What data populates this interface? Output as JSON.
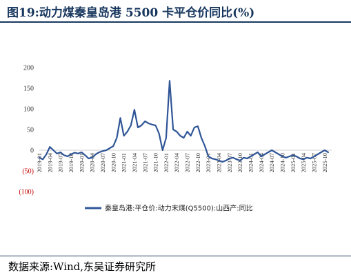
{
  "header": {
    "title": "图19:动力煤秦皇岛港 5500 卡平仓价同比(%)"
  },
  "footer": {
    "source": "数据来源:Wind,东吴证券研究所"
  },
  "colors": {
    "line": "#2f5597",
    "rule": "#17375e",
    "negative_tick": "#c00000"
  },
  "chart_data": {
    "type": "line",
    "title": "",
    "xlabel": "",
    "ylabel": "",
    "ylim": [
      -100,
      200
    ],
    "y_ticks": [
      "200",
      "150",
      "100",
      "50",
      "0",
      "(50)",
      "(100)"
    ],
    "y_tick_values": [
      200,
      150,
      100,
      50,
      0,
      -50,
      -100
    ],
    "x_ticks": [
      "2019-01",
      "2019-04",
      "2019-07",
      "2019-10",
      "2020-01",
      "2020-04",
      "2020-07",
      "2020-10",
      "2021-01",
      "2021-04",
      "2021-07",
      "2021-10",
      "2022-01",
      "2022-04",
      "2022-07",
      "2022-10",
      "2023-01",
      "2023-04",
      "2023-07",
      "2023-10",
      "2024-01",
      "2024-04",
      "2024-07",
      "2024-10",
      "2025-01",
      "2025-04",
      "2025-07",
      "2025-10"
    ],
    "legend_position": "bottom",
    "grid": false,
    "series": [
      {
        "name": "秦皇岛港:平仓价:动力末煤(Q5500):山西产:同比",
        "x": [
          "2019-01",
          "2019-02",
          "2019-03",
          "2019-04",
          "2019-05",
          "2019-06",
          "2019-07",
          "2019-08",
          "2019-09",
          "2019-10",
          "2019-11",
          "2019-12",
          "2020-01",
          "2020-02",
          "2020-03",
          "2020-04",
          "2020-05",
          "2020-06",
          "2020-07",
          "2020-08",
          "2020-09",
          "2020-10",
          "2020-11",
          "2020-12",
          "2021-01",
          "2021-02",
          "2021-03",
          "2021-04",
          "2021-05",
          "2021-06",
          "2021-07",
          "2021-08",
          "2021-09",
          "2021-10",
          "2021-11",
          "2021-12",
          "2022-01",
          "2022-02",
          "2022-03",
          "2022-04",
          "2022-05",
          "2022-06",
          "2022-07",
          "2022-08",
          "2022-09",
          "2022-10",
          "2022-11",
          "2022-12",
          "2023-01",
          "2023-02",
          "2023-03",
          "2023-04",
          "2023-05",
          "2023-06",
          "2023-07",
          "2023-08",
          "2023-09",
          "2023-10",
          "2023-11",
          "2023-12",
          "2024-01",
          "2024-02",
          "2024-03",
          "2024-04",
          "2024-05",
          "2024-06",
          "2024-07",
          "2024-08",
          "2024-09",
          "2024-10",
          "2024-11",
          "2024-12",
          "2025-01",
          "2025-02",
          "2025-03",
          "2025-04",
          "2025-05",
          "2025-06",
          "2025-07",
          "2025-08",
          "2025-09",
          "2025-10",
          "2025-11"
        ],
        "values": [
          -18,
          -22,
          -10,
          8,
          0,
          -8,
          -5,
          -12,
          -15,
          -10,
          -6,
          -8,
          -5,
          -12,
          -20,
          -18,
          -10,
          -5,
          -2,
          0,
          5,
          10,
          30,
          78,
          35,
          45,
          60,
          98,
          55,
          60,
          70,
          65,
          62,
          60,
          40,
          0,
          30,
          168,
          50,
          45,
          35,
          30,
          45,
          35,
          55,
          58,
          30,
          10,
          -15,
          -20,
          -22,
          -25,
          -28,
          -25,
          -20,
          -18,
          -22,
          -25,
          -18,
          -20,
          -15,
          -10,
          -5,
          -15,
          -10,
          -5,
          0,
          -5,
          -10,
          -15,
          -18,
          -15,
          -12,
          -15,
          -20,
          -22,
          -18,
          -20,
          -15,
          -10,
          -5,
          0,
          -5
        ]
      }
    ]
  }
}
